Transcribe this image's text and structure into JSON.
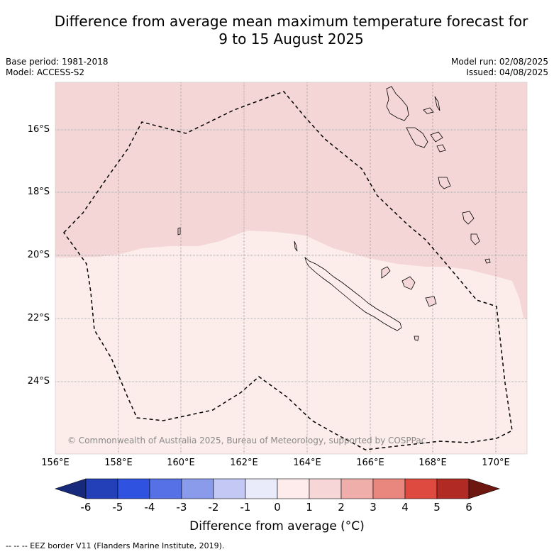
{
  "title_line1": "Difference from average mean maximum temperature forecast for",
  "title_line2": "9 to 15 August 2025",
  "base_period": "Base period: 1981-2018",
  "model": "Model: ACCESS-S2",
  "model_run": "Model run: 02/08/2025",
  "issued": "Issued: 04/08/2025",
  "copyright": "© Commonwealth of Australia 2025, Bureau of Meteorology, supported by COSPPac",
  "lat_labels": [
    "16°S",
    "18°S",
    "20°S",
    "22°S",
    "24°S"
  ],
  "lon_labels": [
    "156°E",
    "158°E",
    "160°E",
    "162°E",
    "164°E",
    "166°E",
    "168°E",
    "170°E"
  ],
  "colorbar": {
    "title": "Difference from average (°C)",
    "ticks": [
      "-6",
      "-5",
      "-4",
      "-3",
      "-2",
      "-1",
      "0",
      "1",
      "2",
      "3",
      "4",
      "5",
      "6"
    ],
    "colors": [
      "#17297a",
      "#2340b8",
      "#2f52e0",
      "#5670e6",
      "#8a9bec",
      "#c3c8f5",
      "#e9ebfb",
      "#fdeceb",
      "#f6d6d6",
      "#efaeaa",
      "#e9867e",
      "#de4a3f",
      "#b12a23",
      "#6e1610"
    ]
  },
  "footer": "--  --  -- EEZ border V11 (Flanders Marine Institute, 2019)."
}
